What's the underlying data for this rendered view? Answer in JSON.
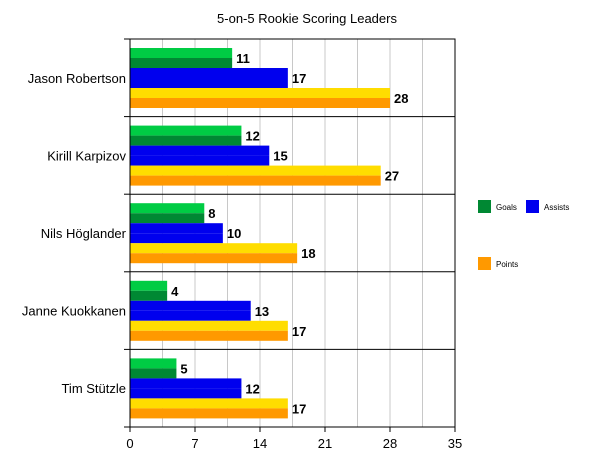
{
  "chart_data": {
    "type": "bar",
    "orientation": "horizontal",
    "title": "5-on-5 Rookie Scoring Leaders",
    "xlabel": "",
    "ylabel": "",
    "categories": [
      "Jason Robertson",
      "Kirill Karpizov",
      "Nils Höglander",
      "Janne Kuokkanen",
      "Tim Stützle"
    ],
    "series": [
      {
        "name": "Goals",
        "values": [
          11,
          12,
          8,
          4,
          5
        ],
        "color": "#00cc44",
        "color_dark": "#008833"
      },
      {
        "name": "Assists",
        "values": [
          17,
          15,
          10,
          13,
          12
        ],
        "color": "#0000ee",
        "color_dark": "#0000ee"
      },
      {
        "name": "Points",
        "values": [
          28,
          27,
          18,
          17,
          17
        ],
        "color": "#ffdd00",
        "color_dark": "#ff9900"
      }
    ],
    "xlim": [
      0,
      35
    ],
    "xticks": [
      0,
      7,
      14,
      21,
      28,
      35
    ],
    "grid": true,
    "legend": "right"
  }
}
